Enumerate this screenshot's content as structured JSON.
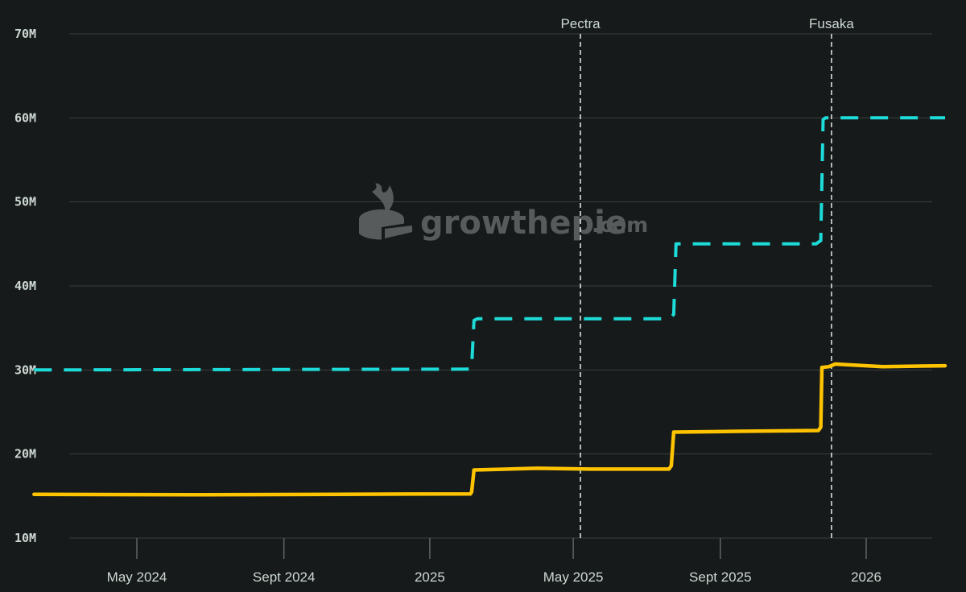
{
  "watermark": {
    "name": "growthepie",
    "suffix": ".com"
  },
  "colors": {
    "background": "#161a1a",
    "grid": "#3a3f3f",
    "axis_text": "#cdd8d3",
    "event_line": "#e6ecea",
    "gas_limit": "#1ddbd8",
    "gas_used": "#ffc300",
    "watermark": "#5b5f5f"
  },
  "chart_data": {
    "type": "line",
    "title": "",
    "xlabel": "",
    "ylabel": "",
    "x_range": [
      "2024-02-01",
      "2026-03-15"
    ],
    "ylim": [
      10000000,
      70000000
    ],
    "grid": "horizontal",
    "x_tick_labels": [
      {
        "label": "May 2024",
        "date": "2024-05-01"
      },
      {
        "label": "Sept 2024",
        "date": "2024-09-01"
      },
      {
        "label": "2025",
        "date": "2025-01-01"
      },
      {
        "label": "May 2025",
        "date": "2025-05-01"
      },
      {
        "label": "Sept 2025",
        "date": "2025-09-01"
      },
      {
        "label": "2026",
        "date": "2026-01-01"
      }
    ],
    "y_tick_labels": [
      {
        "label": "10M",
        "value": 10000000
      },
      {
        "label": "20M",
        "value": 20000000
      },
      {
        "label": "30M",
        "value": 30000000
      },
      {
        "label": "40M",
        "value": 40000000
      },
      {
        "label": "50M",
        "value": 50000000
      },
      {
        "label": "60M",
        "value": 60000000
      },
      {
        "label": "70M",
        "value": 70000000
      }
    ],
    "events": [
      {
        "label": "Pectra",
        "date": "2025-05-07"
      },
      {
        "label": "Fusaka",
        "date": "2025-12-03"
      }
    ],
    "series": [
      {
        "style": "dashed",
        "color": "#1ddbd8",
        "points": [
          {
            "x": "2024-02-05",
            "y": 30000000
          },
          {
            "x": "2025-02-04",
            "y": 30100000
          },
          {
            "x": "2025-02-05",
            "y": 30400000
          },
          {
            "x": "2025-02-07",
            "y": 35900000
          },
          {
            "x": "2025-02-10",
            "y": 36100000
          },
          {
            "x": "2025-07-20",
            "y": 36100000
          },
          {
            "x": "2025-07-24",
            "y": 36600000
          },
          {
            "x": "2025-07-26",
            "y": 45000000
          },
          {
            "x": "2025-11-20",
            "y": 45000000
          },
          {
            "x": "2025-11-24",
            "y": 45400000
          },
          {
            "x": "2025-11-26",
            "y": 59800000
          },
          {
            "x": "2025-11-28",
            "y": 60000000
          },
          {
            "x": "2026-03-08",
            "y": 60000000
          }
        ]
      },
      {
        "style": "solid",
        "color": "#ffc300",
        "points": [
          {
            "x": "2024-02-05",
            "y": 15200000
          },
          {
            "x": "2024-06-15",
            "y": 15150000
          },
          {
            "x": "2024-10-15",
            "y": 15200000
          },
          {
            "x": "2025-02-04",
            "y": 15250000
          },
          {
            "x": "2025-02-05",
            "y": 15500000
          },
          {
            "x": "2025-02-07",
            "y": 18100000
          },
          {
            "x": "2025-04-01",
            "y": 18300000
          },
          {
            "x": "2025-05-15",
            "y": 18200000
          },
          {
            "x": "2025-07-20",
            "y": 18200000
          },
          {
            "x": "2025-07-22",
            "y": 18600000
          },
          {
            "x": "2025-07-24",
            "y": 22600000
          },
          {
            "x": "2025-09-15",
            "y": 22700000
          },
          {
            "x": "2025-11-22",
            "y": 22800000
          },
          {
            "x": "2025-11-24",
            "y": 23200000
          },
          {
            "x": "2025-11-25",
            "y": 30300000
          },
          {
            "x": "2025-12-01",
            "y": 30400000
          },
          {
            "x": "2025-12-06",
            "y": 30700000
          },
          {
            "x": "2026-01-15",
            "y": 30400000
          },
          {
            "x": "2026-03-08",
            "y": 30500000
          }
        ]
      }
    ]
  }
}
